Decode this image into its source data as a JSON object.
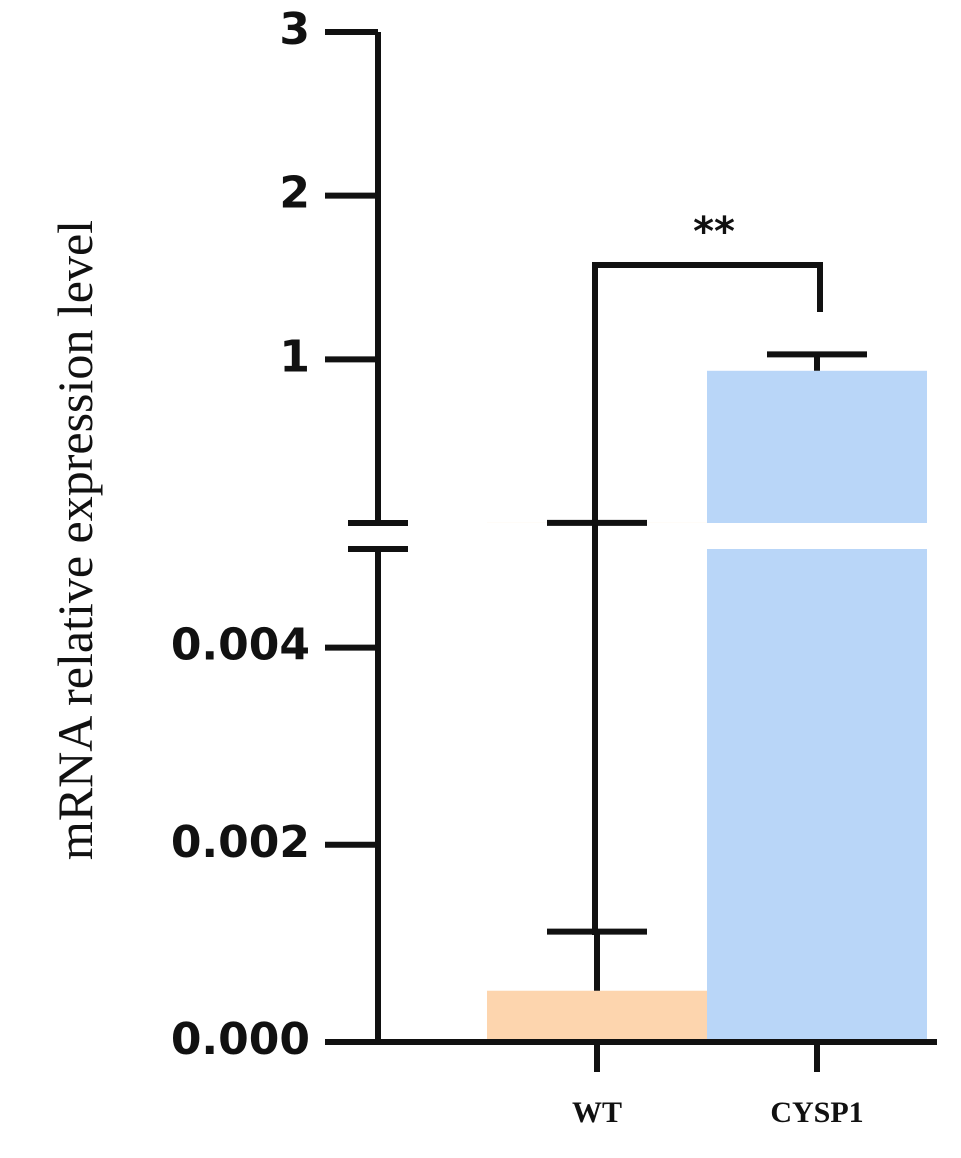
{
  "chart_data": {
    "type": "bar",
    "y_label": "mRNA relative expression level",
    "categories": [
      "WT",
      "CYSP1"
    ],
    "values": [
      0.00052,
      0.93
    ],
    "errors": [
      0.0006,
      0.1
    ],
    "colors": [
      "#fdd5ae",
      "#b9d6f8"
    ],
    "axis_break": true,
    "segments": [
      {
        "ylim": [
          0,
          0.005
        ],
        "yticks": [
          {
            "value": 0,
            "label": "0.000"
          },
          {
            "value": 0.002,
            "label": "0.002"
          },
          {
            "value": 0.004,
            "label": "0.004"
          }
        ]
      },
      {
        "ylim": [
          0,
          3
        ],
        "yticks": [
          1,
          2,
          3
        ]
      }
    ],
    "annotation": "**"
  }
}
